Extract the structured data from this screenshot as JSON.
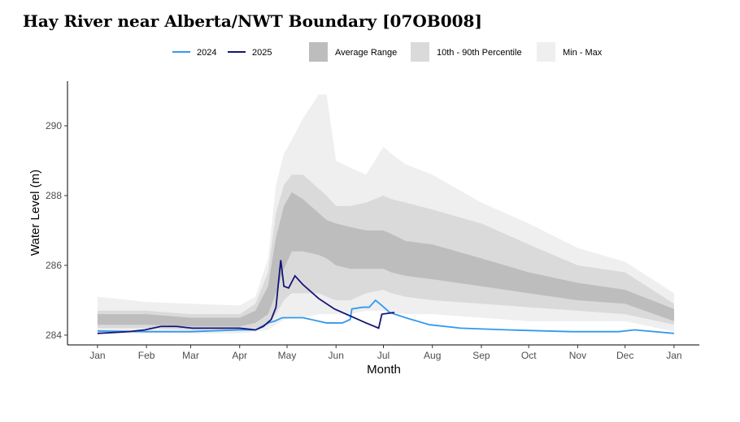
{
  "chart_data": {
    "type": "area",
    "title": "Hay River near Alberta/NWT Boundary [07OB008]",
    "xlabel": "Month",
    "ylabel": "Water Level (m)",
    "xlim": [
      -19,
      381
    ],
    "ylim": [
      283.72,
      291.28
    ],
    "x_ticks": [
      {
        "label": "Jan",
        "day": 0
      },
      {
        "label": "Feb",
        "day": 31
      },
      {
        "label": "Mar",
        "day": 59
      },
      {
        "label": "Apr",
        "day": 90
      },
      {
        "label": "May",
        "day": 120
      },
      {
        "label": "Jun",
        "day": 151
      },
      {
        "label": "Jul",
        "day": 181
      },
      {
        "label": "Aug",
        "day": 212
      },
      {
        "label": "Sep",
        "day": 243
      },
      {
        "label": "Oct",
        "day": 273
      },
      {
        "label": "Nov",
        "day": 304
      },
      {
        "label": "Dec",
        "day": 334
      },
      {
        "label": "Jan",
        "day": 365
      }
    ],
    "y_ticks": [
      284,
      286,
      288,
      290
    ],
    "legend": {
      "placement": "top",
      "series": [
        "2024",
        "2025"
      ],
      "bands": [
        "Average Range",
        "10th - 90th Percentile",
        "Min - Max"
      ]
    },
    "colors": {
      "2024": "#3399ee",
      "2025": "#14147a",
      "avg": "#bdbdbd",
      "p10_90": "#dadada",
      "minmax": "#efefef"
    },
    "band_days": [
      0,
      31,
      59,
      90,
      100,
      108,
      113,
      118,
      123,
      130,
      140,
      145,
      151,
      160,
      170,
      181,
      186,
      195,
      212,
      243,
      273,
      304,
      334,
      365
    ],
    "min": [
      284.05,
      284.05,
      284.05,
      284.05,
      284.1,
      284.15,
      284.3,
      284.45,
      284.5,
      284.5,
      284.6,
      284.6,
      284.6,
      284.6,
      284.7,
      284.7,
      284.65,
      284.6,
      284.6,
      284.5,
      284.4,
      284.4,
      284.4,
      284.1
    ],
    "p10": [
      284.2,
      284.2,
      284.15,
      284.15,
      284.2,
      284.3,
      284.6,
      285.0,
      285.2,
      285.2,
      285.2,
      285.1,
      285.0,
      285.0,
      285.2,
      285.3,
      285.2,
      285.1,
      285.0,
      284.9,
      284.8,
      284.7,
      284.6,
      284.3
    ],
    "avg_low": [
      284.3,
      284.3,
      284.25,
      284.25,
      284.35,
      284.6,
      285.2,
      285.9,
      286.4,
      286.4,
      286.3,
      286.2,
      286.0,
      285.9,
      285.9,
      285.9,
      285.8,
      285.7,
      285.6,
      285.4,
      285.2,
      285.0,
      284.9,
      284.4
    ],
    "avg_high": [
      284.6,
      284.6,
      284.5,
      284.5,
      284.7,
      285.4,
      286.8,
      287.7,
      288.1,
      287.9,
      287.5,
      287.3,
      287.2,
      287.1,
      287.0,
      287.0,
      286.9,
      286.7,
      286.6,
      286.2,
      285.8,
      285.5,
      285.3,
      284.75
    ],
    "p90": [
      284.7,
      284.7,
      284.6,
      284.6,
      284.9,
      285.8,
      287.5,
      288.3,
      288.6,
      288.6,
      288.2,
      288.0,
      287.7,
      287.7,
      287.8,
      288.0,
      287.9,
      287.8,
      287.6,
      287.2,
      286.6,
      286.0,
      285.8,
      284.9
    ],
    "max": [
      285.1,
      284.95,
      284.9,
      284.85,
      285.1,
      286.2,
      288.3,
      289.2,
      289.6,
      290.2,
      290.9,
      290.9,
      289.0,
      288.8,
      288.6,
      289.4,
      289.2,
      288.9,
      288.6,
      287.8,
      287.2,
      286.5,
      286.1,
      285.2
    ],
    "series": [
      {
        "name": "2024",
        "days": [
          0,
          31,
          59,
          90,
          100,
          108,
          112,
          117,
          125,
          130,
          145,
          155,
          160,
          161,
          168,
          172,
          176,
          180,
          185,
          195,
          210,
          230,
          260,
          300,
          330,
          340,
          365
        ],
        "values": [
          284.12,
          284.1,
          284.1,
          284.15,
          284.15,
          284.35,
          284.4,
          284.5,
          284.5,
          284.5,
          284.35,
          284.35,
          284.45,
          284.75,
          284.8,
          284.8,
          285.0,
          284.85,
          284.65,
          284.5,
          284.3,
          284.2,
          284.15,
          284.1,
          284.1,
          284.15,
          284.05
        ]
      },
      {
        "name": "2025",
        "days": [
          0,
          20,
          30,
          40,
          50,
          60,
          90,
          100,
          105,
          110,
          113,
          116,
          118,
          121,
          125,
          130,
          140,
          150,
          160,
          170,
          178,
          180,
          188
        ],
        "values": [
          284.05,
          284.1,
          284.15,
          284.25,
          284.25,
          284.2,
          284.2,
          284.15,
          284.25,
          284.45,
          284.8,
          286.15,
          285.4,
          285.35,
          285.7,
          285.45,
          285.05,
          284.75,
          284.55,
          284.35,
          284.2,
          284.6,
          284.65
        ]
      }
    ]
  }
}
